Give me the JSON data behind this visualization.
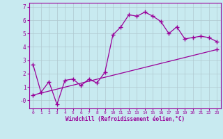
{
  "title": "",
  "xlabel": "Windchill (Refroidissement éolien,°C)",
  "background_color": "#c8eaf0",
  "grid_color": "#b0c8d0",
  "line_color": "#990099",
  "xlim": [
    -0.5,
    23.5
  ],
  "ylim": [
    -0.6,
    7.3
  ],
  "yticks": [
    0,
    1,
    2,
    3,
    4,
    5,
    6,
    7
  ],
  "ytick_labels": [
    "-0",
    "1",
    "2",
    "3",
    "4",
    "5",
    "6",
    "7"
  ],
  "xticks": [
    0,
    1,
    2,
    3,
    4,
    5,
    6,
    7,
    8,
    9,
    10,
    11,
    12,
    13,
    14,
    15,
    16,
    17,
    18,
    19,
    20,
    21,
    22,
    23
  ],
  "data_x": [
    0,
    1,
    2,
    3,
    4,
    5,
    6,
    7,
    8,
    9,
    10,
    11,
    12,
    13,
    14,
    15,
    16,
    17,
    18,
    19,
    20,
    21,
    22,
    23
  ],
  "data_y": [
    2.7,
    0.6,
    1.4,
    -0.3,
    1.5,
    1.6,
    1.1,
    1.6,
    1.3,
    2.1,
    4.9,
    5.5,
    6.4,
    6.3,
    6.6,
    6.3,
    5.9,
    5.0,
    5.5,
    4.6,
    4.7,
    4.8,
    4.7,
    4.4
  ],
  "trend_x": [
    0,
    23
  ],
  "trend_y": [
    0.4,
    3.8
  ]
}
